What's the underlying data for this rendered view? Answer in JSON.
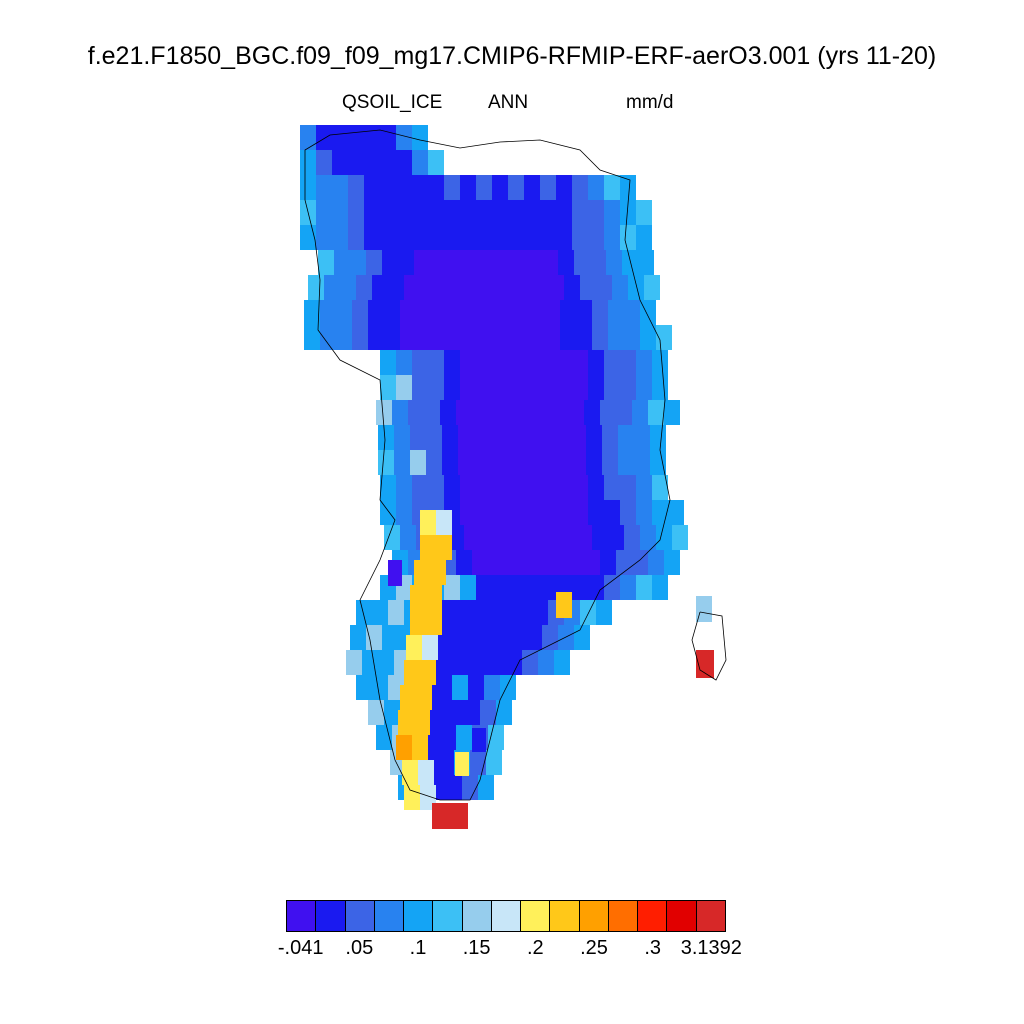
{
  "title": "f.e21.F1850_BGC.f09_f09_mg17.CMIP6-RFMIP-ERF-aerO3.001 (yrs 11-20)",
  "subtitle": {
    "variable": "QSOIL_ICE",
    "period": "ANN",
    "units": "mm/d"
  },
  "colorbar": {
    "colors": [
      "#4010F0",
      "#1A1AF0",
      "#3C64E6",
      "#2882F0",
      "#14A4F5",
      "#3CC0F5",
      "#96CDED",
      "#C8E6F8",
      "#FFF05A",
      "#FFC819",
      "#FFA000",
      "#FF6E00",
      "#FF1E00",
      "#E10000",
      "#D72828"
    ],
    "tick_labels": [
      "-.041",
      ".05",
      ".1",
      ".15",
      ".2",
      ".25",
      ".3",
      "3.1392"
    ],
    "tick_box_index": [
      0,
      2,
      4,
      6,
      8,
      10,
      12,
      14
    ]
  },
  "map": {
    "region": "Greenland",
    "field": [
      {
        "row": 0,
        "col": 0,
        "v": 3
      },
      {
        "row": 0,
        "col": 1,
        "v": 4
      },
      {
        "row": 0,
        "col": 2,
        "v": 3
      },
      {
        "row": 0,
        "col": 8,
        "v": 1
      },
      {
        "row": 0,
        "col": 9,
        "v": 2
      },
      {
        "row": 0,
        "col": 11,
        "v": 1
      },
      {
        "row": 0,
        "col": 12,
        "v": 2
      },
      {
        "row": 1,
        "col": 0,
        "v": 3
      },
      {
        "row": 1,
        "col": 1,
        "v": 3
      },
      {
        "row": 1,
        "col": 2,
        "v": 4
      },
      {
        "row": 1,
        "col": 3,
        "v": 4
      },
      {
        "row": 1,
        "col": 7,
        "v": 1
      },
      {
        "row": 1,
        "col": 8,
        "v": 1
      },
      {
        "row": 1,
        "col": 9,
        "v": 2
      },
      {
        "row": 1,
        "col": 10,
        "v": 1
      },
      {
        "row": 1,
        "col": 11,
        "v": 2
      },
      {
        "row": 1,
        "col": 13,
        "v": 3
      }
    ]
  }
}
